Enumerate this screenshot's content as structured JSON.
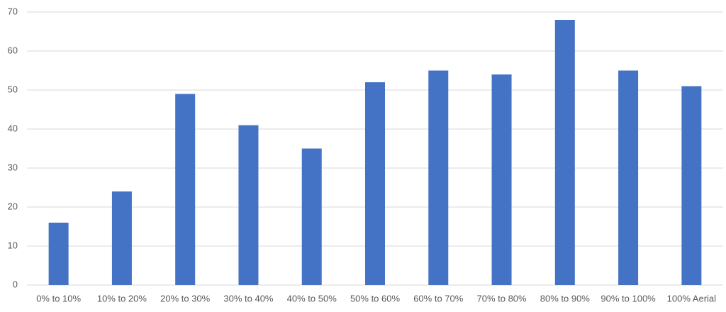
{
  "chart_data": {
    "type": "bar",
    "categories": [
      "0% to 10%",
      "10% to 20%",
      "20% to 30%",
      "30% to 40%",
      "40% to 50%",
      "50% to 60%",
      "60% to 70%",
      "70% to 80%",
      "80% to 90%",
      "90% to 100%",
      "100% Aerial"
    ],
    "values": [
      16,
      24,
      49,
      41,
      35,
      52,
      55,
      54,
      68,
      55,
      51
    ],
    "color": "#4472c4",
    "ylim": [
      0,
      70
    ],
    "yticks": [
      0,
      10,
      20,
      30,
      40,
      50,
      60,
      70
    ],
    "grid": true
  }
}
